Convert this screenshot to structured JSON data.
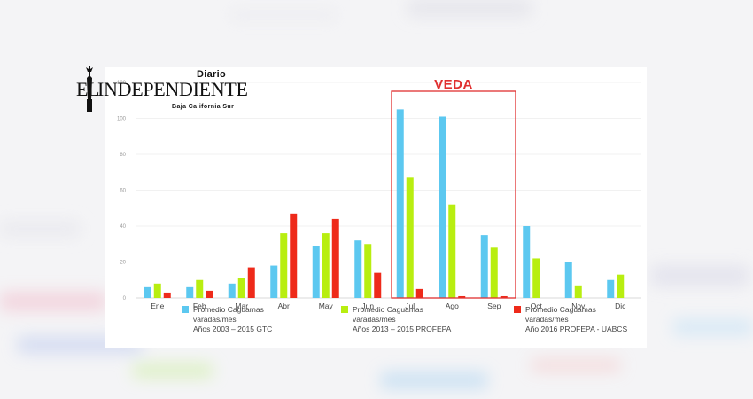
{
  "logo": {
    "diario": "Diario",
    "el": "EL",
    "name": "INDEPENDIENTE",
    "region": "Baja California Sur"
  },
  "veda": {
    "label": "VEDA",
    "color": "#e03030"
  },
  "colors": {
    "blue": "#5cc8f0",
    "green": "#b8ee10",
    "red": "#ee2a1a"
  },
  "chart_data": {
    "type": "bar",
    "categories": [
      "Ene",
      "Feb",
      "Mar",
      "Abr",
      "May",
      "Jun",
      "Jul",
      "Ago",
      "Sep",
      "Oct",
      "Nov",
      "Dic"
    ],
    "ylim": [
      0,
      120
    ],
    "yticks": [
      "0",
      "20",
      "40",
      "60",
      "80",
      "100",
      "120"
    ],
    "grid": true,
    "series": [
      {
        "name": "Promedio Caguamas varadas/mes Años 2003 – 2015 GTC",
        "legend": [
          "Promedio Caguamas",
          "varadas/mes",
          "Años 2003 – 2015 GTC"
        ],
        "color": "#5cc8f0",
        "values": [
          6,
          6,
          8,
          18,
          29,
          32,
          105,
          101,
          35,
          40,
          20,
          10
        ]
      },
      {
        "name": "Promedio Caguamas varadas/mes Años 2013 – 2015 PROFEPA",
        "legend": [
          "Promedio Caguamas",
          "varadas/mes",
          "Años 2013 – 2015 PROFEPA"
        ],
        "color": "#b8ee10",
        "values": [
          8,
          10,
          11,
          36,
          36,
          30,
          67,
          52,
          28,
          22,
          7,
          13
        ]
      },
      {
        "name": "Promedio Caguamas varadas/mes Año 2016 PROFEPA - UABCS",
        "legend": [
          "Promedio Caguamas",
          "varadas/mes",
          "Año 2016 PROFEPA - UABCS"
        ],
        "color": "#ee2a1a",
        "values": [
          3,
          4,
          17,
          47,
          44,
          14,
          5,
          1,
          1,
          null,
          null,
          null
        ]
      }
    ]
  }
}
